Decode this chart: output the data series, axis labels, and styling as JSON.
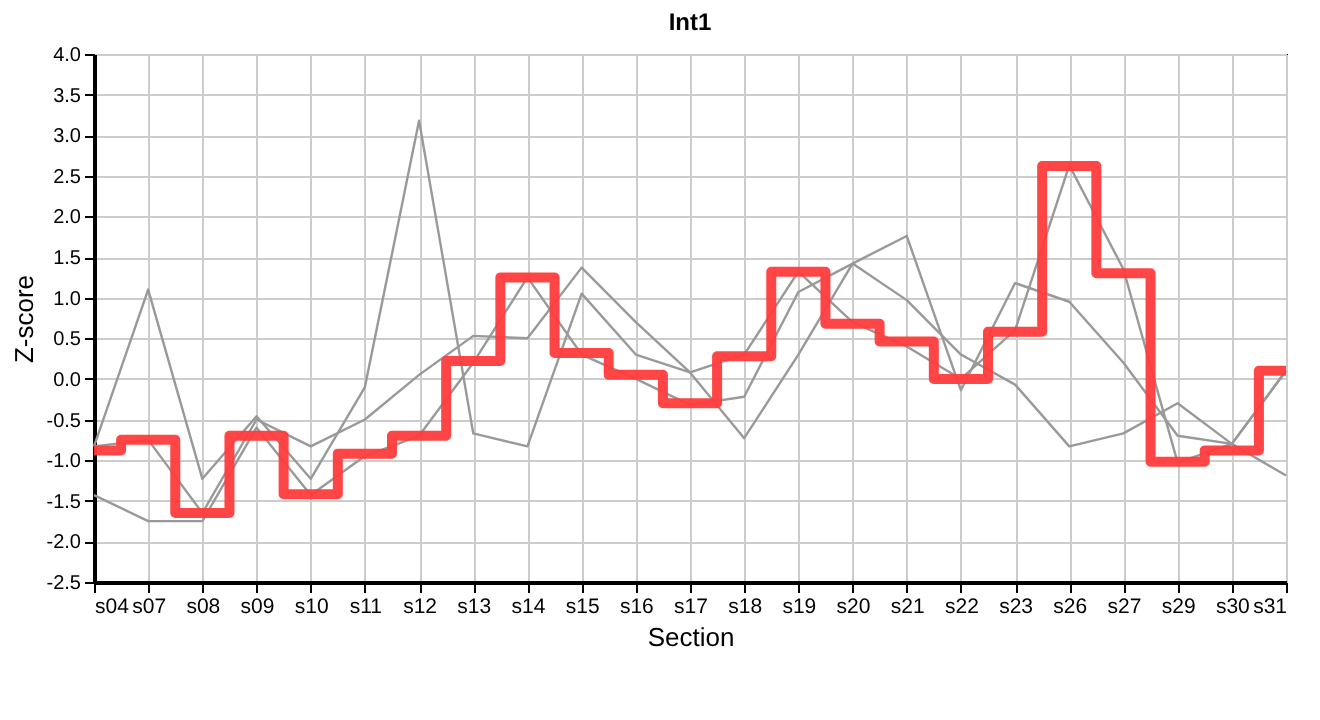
{
  "chart_data": {
    "type": "line",
    "title": "Int1",
    "xlabel": "Section",
    "ylabel": "Z-score",
    "categories": [
      "s04",
      "s07",
      "s08",
      "s09",
      "s10",
      "s11",
      "s12",
      "s13",
      "s14",
      "s15",
      "s16",
      "s17",
      "s18",
      "s19",
      "s20",
      "s21",
      "s22",
      "s23",
      "s26",
      "s27",
      "s29",
      "s30",
      "s31"
    ],
    "series": [
      {
        "color": "#999999",
        "values": [
          -0.83,
          1.1,
          -1.23,
          -0.46,
          -1.23,
          -0.1,
          3.18,
          -0.67,
          -0.83,
          1.05,
          0.3,
          0.08,
          -0.73,
          0.3,
          1.42,
          1.76,
          -0.14,
          1.18,
          0.95,
          0.2,
          -0.7,
          -0.8,
          0.1
        ]
      },
      {
        "color": "#999999",
        "values": [
          -1.43,
          -1.75,
          -1.75,
          -0.6,
          -1.43,
          -0.95,
          -0.7,
          0.2,
          1.25,
          0.3,
          0.0,
          -0.32,
          -0.22,
          1.07,
          1.42,
          0.97,
          0.3,
          -0.07,
          -0.83,
          -0.67,
          -0.3,
          -0.8,
          -1.19
        ]
      },
      {
        "color": "#999999",
        "values": [
          -0.83,
          -0.75,
          -1.65,
          -0.5,
          -0.83,
          -0.5,
          0.05,
          0.53,
          0.5,
          1.37,
          0.7,
          0.08,
          0.3,
          1.32,
          0.7,
          0.4,
          0.0,
          0.6,
          2.63,
          1.35,
          -1.03,
          -0.8,
          0.1
        ]
      },
      {
        "type": "step",
        "color": "#ff3b3b",
        "values": [
          -0.88,
          -0.75,
          -1.65,
          -0.7,
          -1.42,
          -0.92,
          -0.7,
          0.22,
          1.25,
          0.32,
          0.05,
          -0.3,
          0.28,
          1.32,
          0.68,
          0.46,
          0.0,
          0.58,
          2.62,
          1.3,
          -1.02,
          -0.88,
          0.1
        ]
      }
    ],
    "ylim": [
      -2.5,
      4.0
    ],
    "yticks": [
      -2.5,
      {
        "value": -2,
        "label": "-2.0"
      },
      -1.5,
      {
        "value": -1,
        "label": "-1.0"
      },
      -0.5,
      {
        "value": 0,
        "label": "0.0"
      },
      0.5,
      {
        "value": 1,
        "label": "1.0"
      },
      1.5,
      {
        "value": 2,
        "label": "2.0"
      },
      2.5,
      {
        "value": 3,
        "label": "3.0"
      },
      3.5,
      {
        "value": 4,
        "label": "4.0"
      }
    ],
    "grid": true
  }
}
